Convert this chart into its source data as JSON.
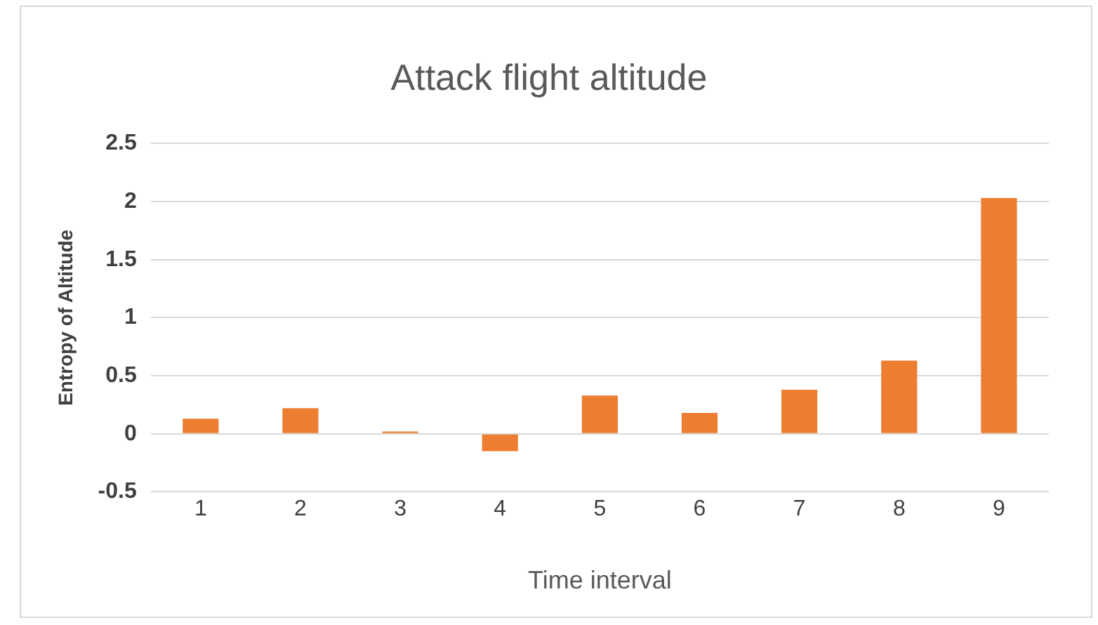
{
  "chart_data": {
    "type": "bar",
    "title": "Attack flight altitude",
    "xlabel": "Time interval",
    "ylabel": "Entropy of Altitude",
    "categories": [
      "1",
      "2",
      "3",
      "4",
      "5",
      "6",
      "7",
      "8",
      "9"
    ],
    "values": [
      0.13,
      0.22,
      0.02,
      -0.15,
      0.33,
      0.18,
      0.38,
      0.63,
      2.03
    ],
    "color": "#ed7d31",
    "ylim": [
      -0.5,
      2.5
    ],
    "yticks": [
      -0.5,
      0,
      0.5,
      1,
      1.5,
      2,
      2.5
    ],
    "grid": "y"
  }
}
